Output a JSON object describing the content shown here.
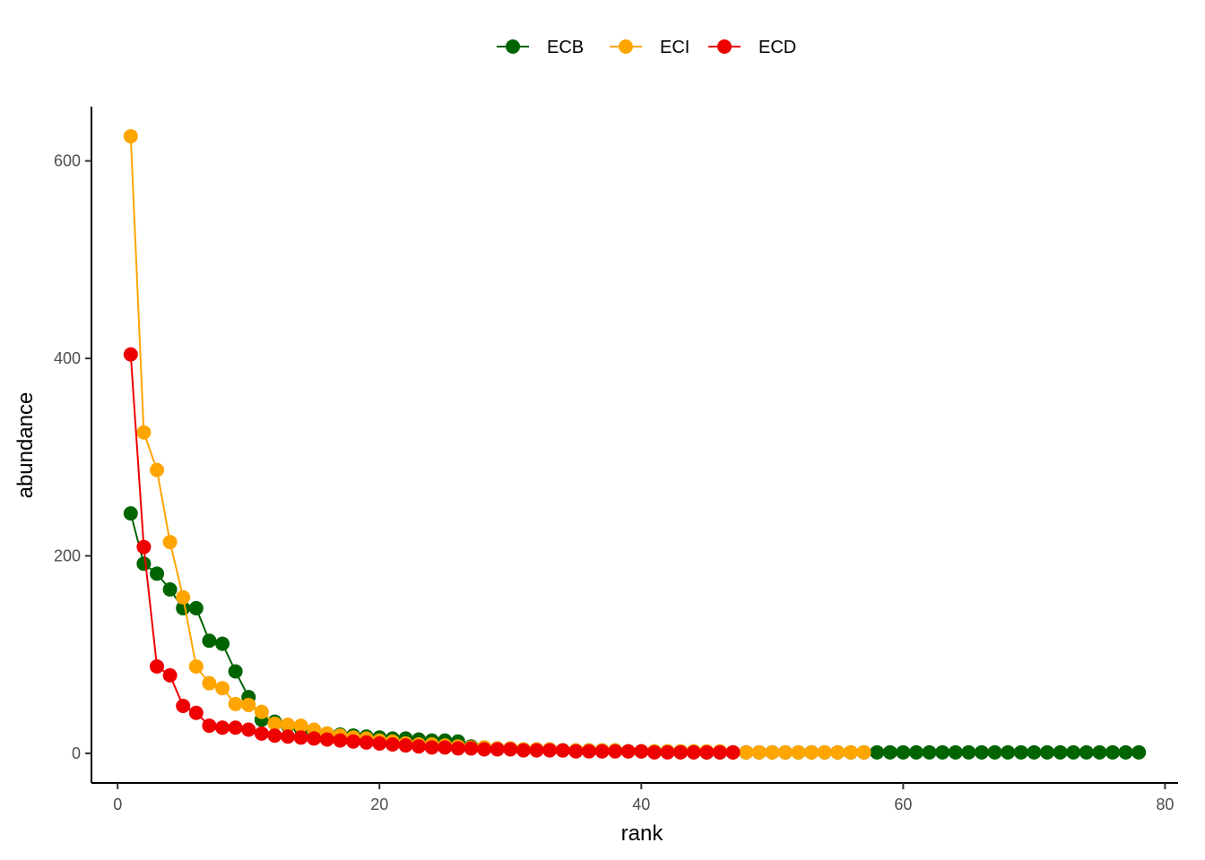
{
  "chart_data": {
    "type": "line",
    "title": "",
    "xlabel": "rank",
    "ylabel": "abundance",
    "xlim": [
      -2,
      81
    ],
    "ylim": [
      -30,
      655
    ],
    "xticks": [
      0,
      20,
      40,
      60,
      80
    ],
    "yticks": [
      0,
      200,
      400,
      600
    ],
    "xtick_labels": [
      "0",
      "20",
      "40",
      "60",
      "80"
    ],
    "ytick_labels": [
      "0",
      "200",
      "400",
      "600"
    ],
    "grid": false,
    "legend_position": "top",
    "series": [
      {
        "name": "ECB",
        "color": "#006400",
        "x": [
          1,
          2,
          3,
          4,
          5,
          6,
          7,
          8,
          9,
          10,
          11,
          12,
          13,
          14,
          15,
          16,
          17,
          18,
          19,
          20,
          21,
          22,
          23,
          24,
          25,
          26,
          27,
          28,
          29,
          30,
          31,
          32,
          33,
          34,
          35,
          36,
          37,
          38,
          39,
          40,
          41,
          42,
          43,
          44,
          45,
          46,
          47,
          48,
          49,
          50,
          51,
          52,
          53,
          54,
          55,
          56,
          57,
          58,
          59,
          60,
          61,
          62,
          63,
          64,
          65,
          66,
          67,
          68,
          69,
          70,
          71,
          72,
          73,
          74,
          75,
          76,
          77,
          78
        ],
        "values": [
          243,
          192,
          182,
          166,
          147,
          147,
          114,
          111,
          83,
          57,
          34,
          32,
          28,
          25,
          22,
          20,
          19,
          18,
          17,
          16,
          15,
          15,
          14,
          13,
          13,
          12,
          7,
          6,
          5,
          5,
          4,
          4,
          4,
          3,
          3,
          3,
          3,
          3,
          2,
          2,
          2,
          2,
          2,
          2,
          1,
          1,
          1,
          1,
          1,
          1,
          1,
          1,
          1,
          1,
          1,
          1,
          1,
          1,
          1,
          1,
          1,
          1,
          1,
          1,
          1,
          1,
          1,
          1,
          1,
          1,
          1,
          1,
          1,
          1,
          1,
          1,
          1,
          1
        ]
      },
      {
        "name": "ECI",
        "color": "#FFA500",
        "x": [
          1,
          2,
          3,
          4,
          5,
          6,
          7,
          8,
          9,
          10,
          11,
          12,
          13,
          14,
          15,
          16,
          17,
          18,
          19,
          20,
          21,
          22,
          23,
          24,
          25,
          26,
          27,
          28,
          29,
          30,
          31,
          32,
          33,
          34,
          35,
          36,
          37,
          38,
          39,
          40,
          41,
          42,
          43,
          44,
          45,
          46,
          47,
          48,
          49,
          50,
          51,
          52,
          53,
          54,
          55,
          56,
          57
        ],
        "values": [
          625,
          325,
          287,
          214,
          158,
          88,
          71,
          66,
          50,
          49,
          42,
          30,
          29,
          28,
          24,
          20,
          18,
          16,
          15,
          13,
          12,
          10,
          9,
          9,
          8,
          7,
          6,
          6,
          5,
          5,
          4,
          4,
          4,
          3,
          3,
          3,
          3,
          3,
          2,
          2,
          2,
          2,
          2,
          2,
          2,
          2,
          1,
          1,
          1,
          1,
          1,
          1,
          1,
          1,
          1,
          1,
          1
        ]
      },
      {
        "name": "ECD",
        "color": "#EE0000",
        "x": [
          1,
          2,
          3,
          4,
          5,
          6,
          7,
          8,
          9,
          10,
          11,
          12,
          13,
          14,
          15,
          16,
          17,
          18,
          19,
          20,
          21,
          22,
          23,
          24,
          25,
          26,
          27,
          28,
          29,
          30,
          31,
          32,
          33,
          34,
          35,
          36,
          37,
          38,
          39,
          40,
          41,
          42,
          43,
          44,
          45,
          46,
          47
        ],
        "values": [
          404,
          209,
          88,
          79,
          48,
          41,
          28,
          26,
          26,
          24,
          20,
          18,
          17,
          16,
          15,
          14,
          13,
          12,
          11,
          10,
          9,
          8,
          7,
          6,
          6,
          5,
          5,
          4,
          4,
          4,
          3,
          3,
          3,
          3,
          2,
          2,
          2,
          2,
          2,
          2,
          1,
          1,
          1,
          1,
          1,
          1,
          1
        ]
      }
    ]
  }
}
